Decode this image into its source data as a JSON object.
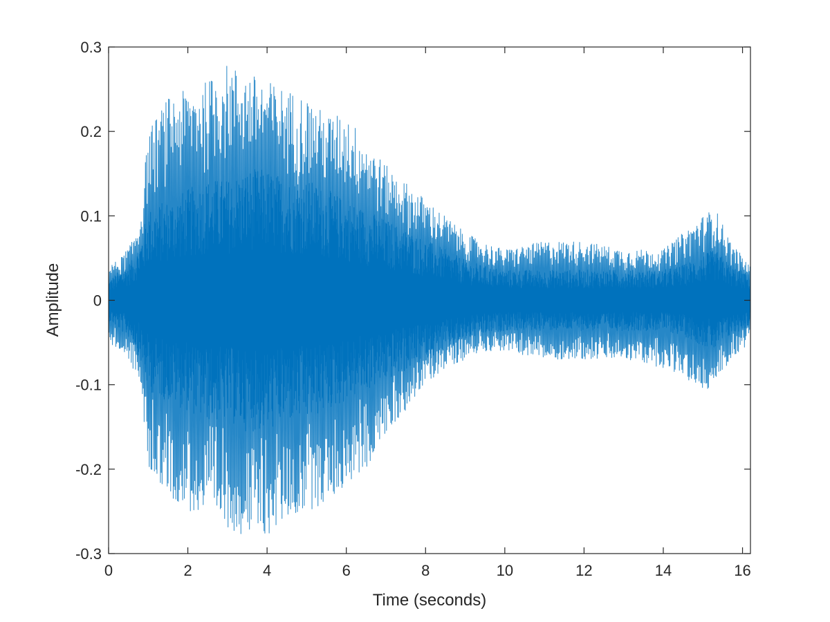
{
  "chart_data": {
    "type": "line",
    "title": "",
    "xlabel": "Time (seconds)",
    "ylabel": "Amplitude",
    "xlim": [
      0,
      16.2
    ],
    "ylim": [
      -0.3,
      0.3
    ],
    "grid": false,
    "legend": "none",
    "line_color": "#0072BD",
    "x_ticks": [
      {
        "value": 0,
        "label": "0"
      },
      {
        "value": 2,
        "label": "2"
      },
      {
        "value": 4,
        "label": "4"
      },
      {
        "value": 6,
        "label": "6"
      },
      {
        "value": 8,
        "label": "8"
      },
      {
        "value": 10,
        "label": "10"
      },
      {
        "value": 12,
        "label": "12"
      },
      {
        "value": 14,
        "label": "14"
      },
      {
        "value": 16,
        "label": "16"
      }
    ],
    "y_ticks": [
      {
        "value": -0.3,
        "label": "-0.3"
      },
      {
        "value": -0.2,
        "label": "-0.2"
      },
      {
        "value": -0.1,
        "label": "-0.1"
      },
      {
        "value": 0,
        "label": "0"
      },
      {
        "value": 0.1,
        "label": "0.1"
      },
      {
        "value": 0.2,
        "label": "0.2"
      },
      {
        "value": 0.3,
        "label": "0.3"
      }
    ],
    "envelope": {
      "time": [
        0,
        0.3,
        0.6,
        0.8,
        1.0,
        1.5,
        2.0,
        2.5,
        3.0,
        3.5,
        4.0,
        4.5,
        5.0,
        5.5,
        6.0,
        6.5,
        7.0,
        7.5,
        8.0,
        8.5,
        9.0,
        9.4,
        10.0,
        11.0,
        12.0,
        13.0,
        14.0,
        14.5,
        15.0,
        15.3,
        15.7,
        16.2
      ],
      "peak_upper": [
        0.04,
        0.05,
        0.07,
        0.1,
        0.2,
        0.24,
        0.25,
        0.26,
        0.28,
        0.27,
        0.26,
        0.25,
        0.24,
        0.22,
        0.22,
        0.19,
        0.16,
        0.14,
        0.12,
        0.1,
        0.08,
        0.07,
        0.06,
        0.07,
        0.07,
        0.06,
        0.06,
        0.08,
        0.1,
        0.11,
        0.07,
        0.04
      ],
      "peak_lower": [
        -0.05,
        -0.06,
        -0.08,
        -0.1,
        -0.2,
        -0.23,
        -0.25,
        -0.26,
        -0.27,
        -0.28,
        -0.28,
        -0.26,
        -0.25,
        -0.24,
        -0.22,
        -0.2,
        -0.16,
        -0.13,
        -0.1,
        -0.08,
        -0.07,
        -0.06,
        -0.06,
        -0.07,
        -0.07,
        -0.07,
        -0.08,
        -0.09,
        -0.11,
        -0.1,
        -0.07,
        -0.05
      ],
      "core_amplitude": [
        0.02,
        0.03,
        0.04,
        0.06,
        0.09,
        0.1,
        0.11,
        0.12,
        0.12,
        0.13,
        0.13,
        0.12,
        0.12,
        0.11,
        0.1,
        0.09,
        0.08,
        0.07,
        0.06,
        0.05,
        0.04,
        0.035,
        0.03,
        0.03,
        0.03,
        0.03,
        0.03,
        0.035,
        0.045,
        0.05,
        0.035,
        0.025
      ]
    }
  }
}
